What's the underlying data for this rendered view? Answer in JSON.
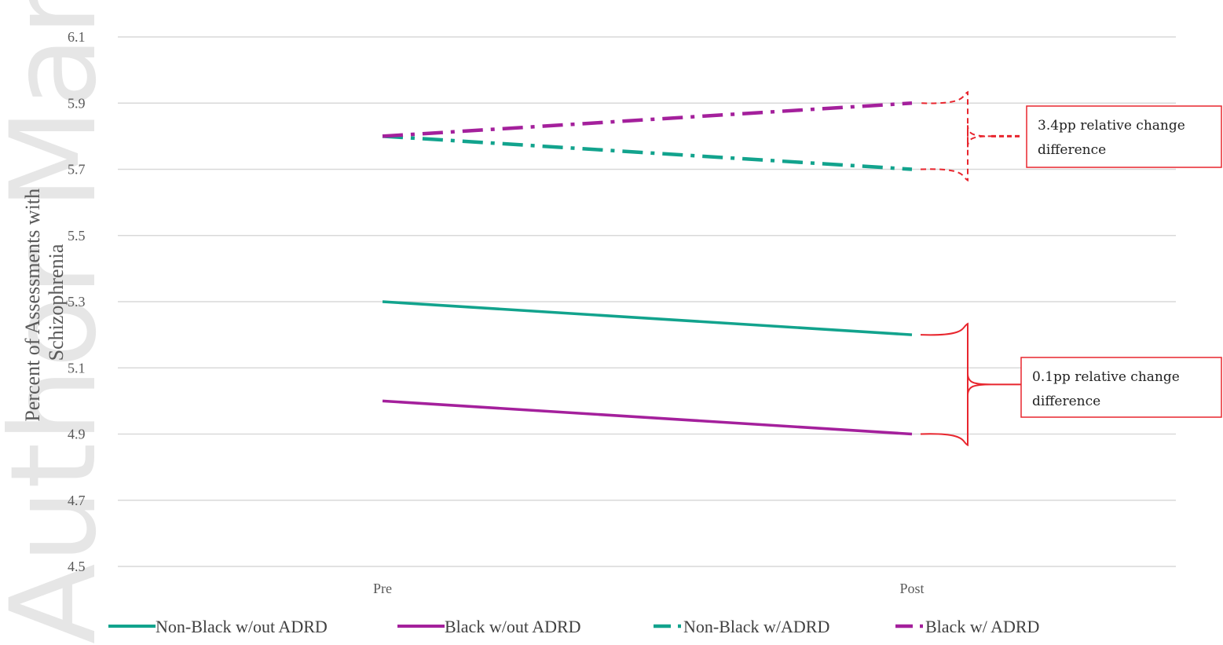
{
  "watermark": "Author Manuscript",
  "colors": {
    "teal": "#12A38D",
    "purple": "#A4209C",
    "grid": "#d9d9d9",
    "annotation": "#E8262E"
  },
  "chart_data": {
    "type": "line",
    "title": "",
    "xlabel": "",
    "ylabel": "Percent of Assessments with Schizophrenia",
    "ylabel_lines": [
      "Percent of Assessments with",
      "Schizophrenia"
    ],
    "categories": [
      "Pre",
      "Post"
    ],
    "ylim": [
      4.5,
      6.1
    ],
    "yticks": [
      4.5,
      4.7,
      4.9,
      5.1,
      5.3,
      5.5,
      5.7,
      5.9,
      6.1
    ],
    "ytick_labels": [
      "4.5",
      "4.7",
      "4.9",
      "5.1",
      "5.3",
      "5.5",
      "5.7",
      "5.9",
      "6.1"
    ],
    "grid": true,
    "legend_position": "bottom",
    "series": [
      {
        "name": "Non-Black w/out ADRD",
        "values": [
          5.3,
          5.2
        ],
        "color": "#12A38D",
        "style": "solid"
      },
      {
        "name": "Black w/out ADRD",
        "values": [
          5.0,
          4.9
        ],
        "color": "#A4209C",
        "style": "solid"
      },
      {
        "name": "Non-Black w/ADRD",
        "values": [
          5.8,
          5.7
        ],
        "color": "#12A38D",
        "style": "dashdot"
      },
      {
        "name": "Black w/ ADRD",
        "values": [
          5.8,
          5.9
        ],
        "color": "#A4209C",
        "style": "dashdot"
      }
    ],
    "annotations": [
      {
        "lines": [
          "3.4pp relative change",
          "difference"
        ],
        "brace_range": [
          5.7,
          5.9
        ],
        "style": "dashed"
      },
      {
        "lines": [
          "0.1pp relative change",
          "difference"
        ],
        "brace_range": [
          4.9,
          5.2
        ],
        "style": "solid"
      }
    ]
  }
}
